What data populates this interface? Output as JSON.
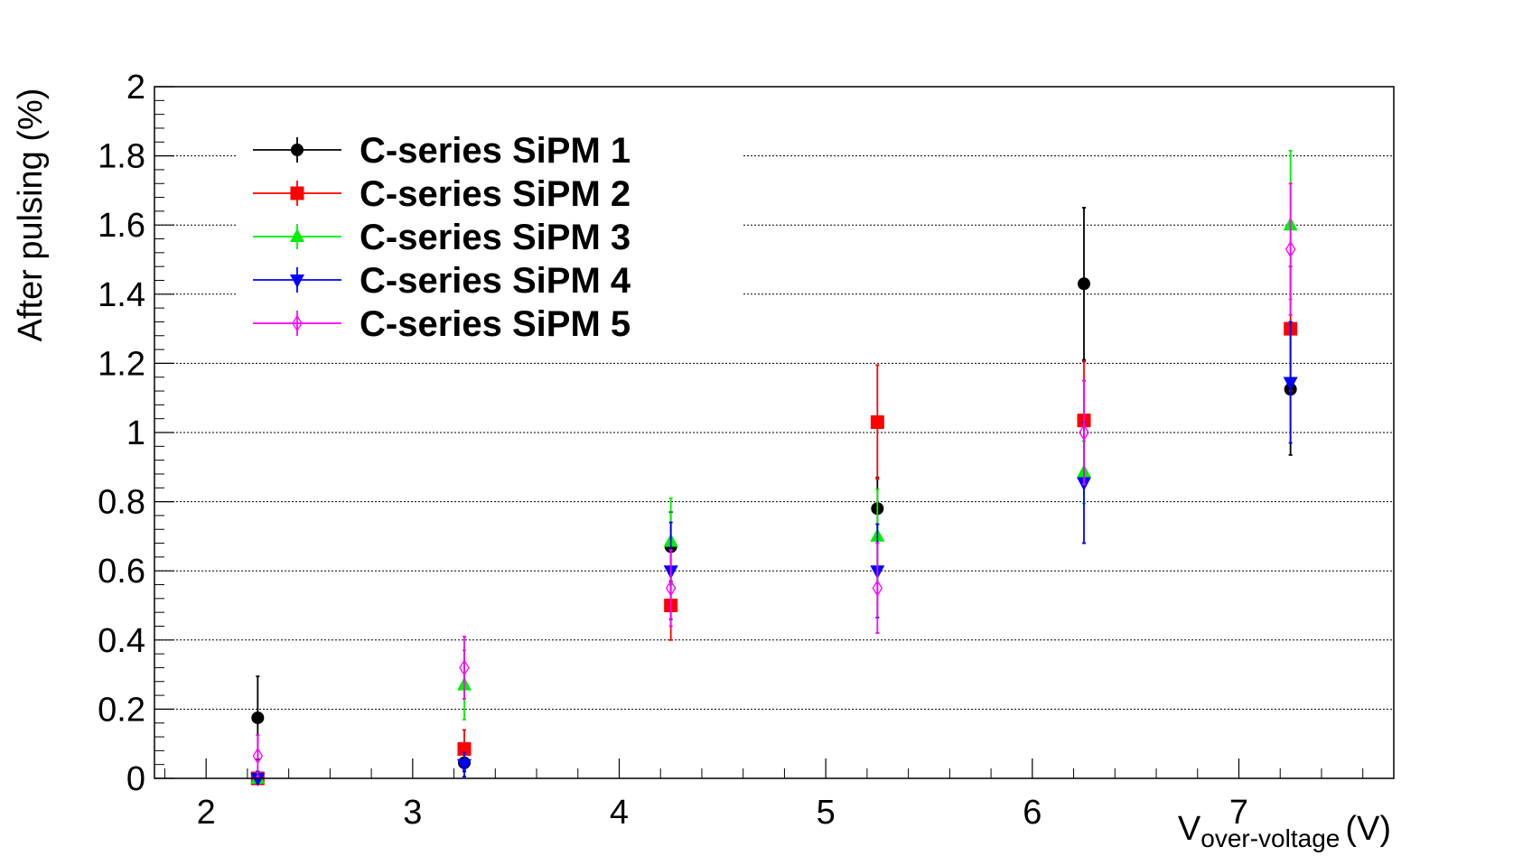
{
  "chart_data": {
    "type": "scatter",
    "xlabel": "V",
    "xlabel_subscript": "over-voltage",
    "xlabel_unit": "(V)",
    "ylabel": "After pulsing (%)",
    "xlim": [
      1.75,
      7.75
    ],
    "ylim": [
      0,
      2
    ],
    "x_ticks": [
      "2",
      "3",
      "4",
      "5",
      "6",
      "7"
    ],
    "y_ticks": [
      "0",
      "0.2",
      "0.4",
      "0.6",
      "0.8",
      "1",
      "1.2",
      "1.4",
      "1.6",
      "1.8",
      "2"
    ],
    "grid": "horizontal dotted",
    "legend_position": "top-left",
    "series": [
      {
        "name": "C-series SiPM 1",
        "color": "#000000",
        "marker": "circle",
        "x": [
          2.25,
          3.25,
          4.25,
          5.25,
          6.25,
          7.25
        ],
        "y": [
          0.175,
          0.045,
          0.67,
          0.78,
          1.43,
          1.125
        ],
        "err": [
          0.12,
          0.025,
          0.1,
          0.09,
          0.22,
          0.19
        ]
      },
      {
        "name": "C-series SiPM 2",
        "color": "#ff0000",
        "marker": "square",
        "x": [
          2.25,
          3.25,
          4.25,
          5.25,
          6.25,
          7.25
        ],
        "y": [
          0.0,
          0.085,
          0.5,
          1.03,
          1.035,
          1.3
        ],
        "err": [
          0.02,
          0.055,
          0.1,
          0.165,
          0.17,
          0.18
        ]
      },
      {
        "name": "C-series SiPM 3",
        "color": "#00ee00",
        "marker": "triangle-up",
        "x": [
          2.25,
          3.25,
          4.25,
          5.25,
          6.25,
          7.25
        ],
        "y": [
          0.0,
          0.27,
          0.685,
          0.7,
          0.885,
          1.6
        ],
        "err": [
          0.02,
          0.1,
          0.125,
          0.135,
          0.09,
          0.215
        ]
      },
      {
        "name": "C-series SiPM 4",
        "color": "#0000ff",
        "marker": "triangle-down",
        "x": [
          2.25,
          3.25,
          4.25,
          5.25,
          6.25,
          7.25
        ],
        "y": [
          0.0,
          0.04,
          0.6,
          0.6,
          0.855,
          1.145
        ],
        "err": [
          0.02,
          0.035,
          0.14,
          0.135,
          0.175,
          0.175
        ]
      },
      {
        "name": "C-series SiPM 5",
        "color": "#ff00ff",
        "marker": "open-diamond",
        "x": [
          2.25,
          3.25,
          4.25,
          5.25,
          6.25,
          7.25
        ],
        "y": [
          0.065,
          0.32,
          0.55,
          0.55,
          1.0,
          1.53
        ],
        "err": [
          0.06,
          0.09,
          0.11,
          0.13,
          0.15,
          0.19
        ]
      }
    ]
  }
}
